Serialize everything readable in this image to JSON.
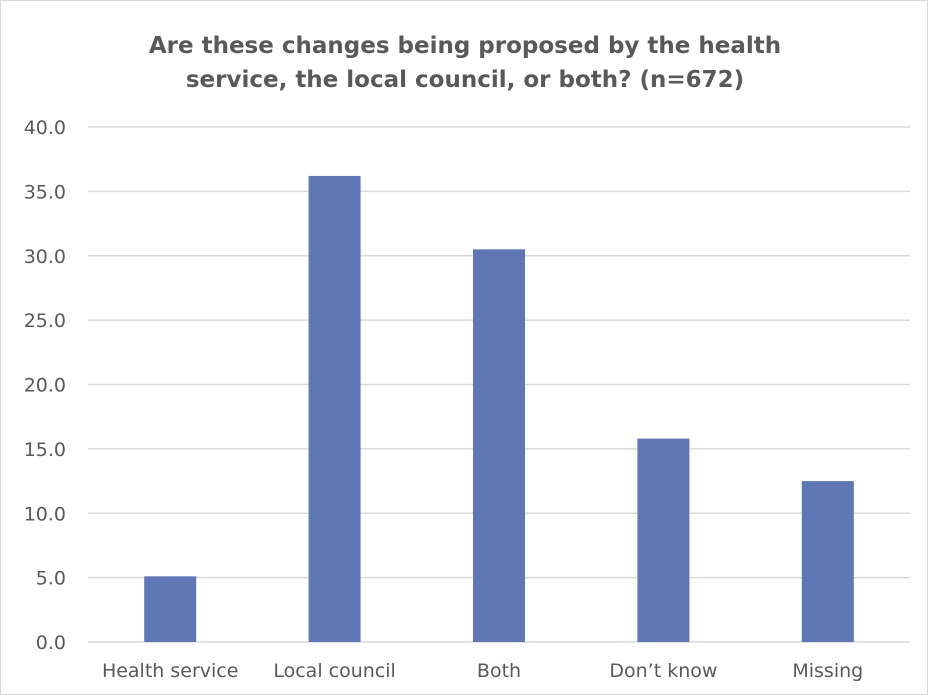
{
  "chart_data": {
    "type": "bar",
    "title_lines": [
      "Are these changes being proposed by the health",
      "service, the local council, or both? (n=672)"
    ],
    "categories": [
      "Health service",
      "Local council",
      "Both",
      "Don’t know",
      "Missing"
    ],
    "values": [
      5.1,
      36.2,
      30.5,
      15.8,
      12.5
    ],
    "xlabel": "",
    "ylabel": "",
    "ylim": [
      0,
      40
    ],
    "ytick_step": 5,
    "ytick_labels": [
      "0.0",
      "5.0",
      "10.0",
      "15.0",
      "20.0",
      "25.0",
      "30.0",
      "35.0",
      "40.0"
    ],
    "grid": "horizontal",
    "legend": "none",
    "bar_color": "#5f77b5",
    "grid_color": "#d9d9d9",
    "text_color": "#595959"
  }
}
